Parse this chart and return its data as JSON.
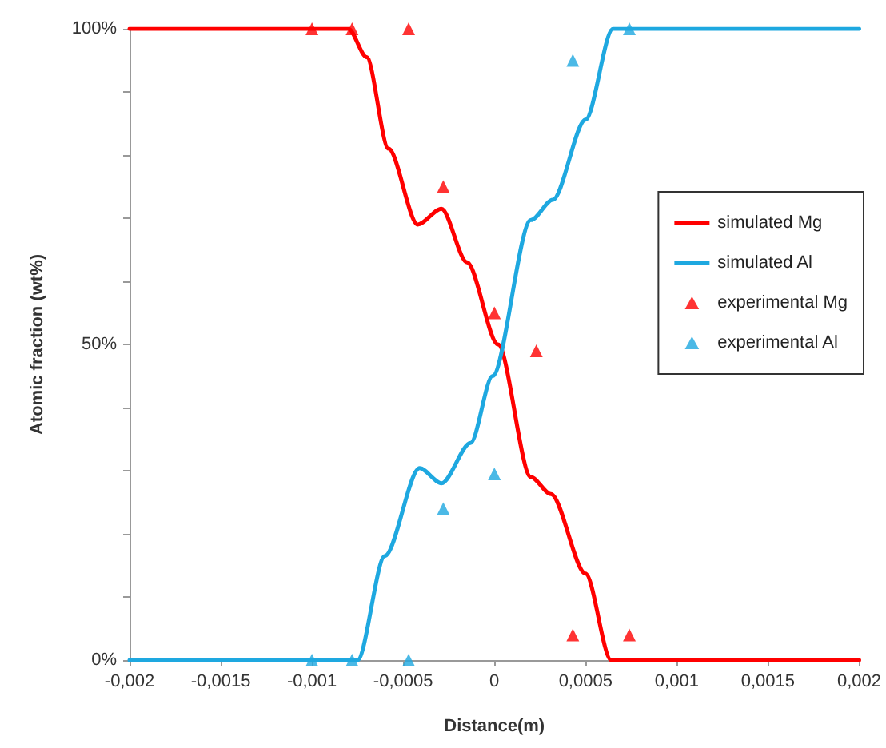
{
  "chart_data": {
    "type": "line",
    "xlabel": "Distance(m)",
    "ylabel": "Atomic fraction (wt%)",
    "xlim": [
      -0.002,
      0.002
    ],
    "xticks": [
      {
        "value": -0.002,
        "label": "-0,002"
      },
      {
        "value": -0.0015,
        "label": "-0,0015"
      },
      {
        "value": -0.001,
        "label": "-0,001"
      },
      {
        "value": -0.0005,
        "label": "-0,0005"
      },
      {
        "value": 0,
        "label": "0"
      },
      {
        "value": 0.0005,
        "label": "0,0005"
      },
      {
        "value": 0.001,
        "label": "0,001"
      },
      {
        "value": 0.0015,
        "label": "0,0015"
      },
      {
        "value": 0.002,
        "label": "0,002"
      }
    ],
    "ylim": [
      0,
      100
    ],
    "yticks": [
      {
        "value": 0,
        "label": "0%"
      },
      {
        "value": 10,
        "label": null
      },
      {
        "value": 20,
        "label": null
      },
      {
        "value": 30,
        "label": null
      },
      {
        "value": 40,
        "label": null
      },
      {
        "value": 50,
        "label": "50%"
      },
      {
        "value": 60,
        "label": null
      },
      {
        "value": 70,
        "label": null
      },
      {
        "value": 80,
        "label": null
      },
      {
        "value": 90,
        "label": null
      },
      {
        "value": 100,
        "label": "100%"
      }
    ],
    "grid": false,
    "legend": "right",
    "series": [
      {
        "name": "simulated Mg",
        "marker": "none",
        "color": "#ff0000",
        "x": [
          -0.002,
          -0.0008,
          -0.0007,
          -0.00058,
          -0.00042,
          -0.00029,
          -0.00015,
          2e-05,
          0.0002,
          0.00031,
          0.0005,
          0.00064,
          0.00081,
          0.002
        ],
        "values": [
          100,
          100,
          95.5,
          81,
          69,
          71.5,
          63,
          50,
          29,
          26.3,
          13.7,
          0,
          0,
          0
        ]
      },
      {
        "name": "simulated Al",
        "marker": "none",
        "color": "#1ea8e0",
        "x": [
          -0.002,
          -0.00075,
          -0.0006,
          -0.00041,
          -0.00029,
          -0.00013,
          -1e-05,
          0.0002,
          0.00032,
          0.0005,
          0.00065,
          0.002
        ],
        "values": [
          0,
          0,
          16.5,
          30.4,
          28,
          34.4,
          45,
          69.7,
          72.9,
          85.6,
          100,
          100
        ]
      },
      {
        "name": "experimental Mg",
        "type": "scatter",
        "marker": "triangle",
        "color": "#ff0000",
        "x": [
          -0.001,
          -0.00078,
          -0.00047,
          -0.00028,
          0,
          0.00023,
          0.00043,
          0.00074
        ],
        "values": [
          100,
          100,
          100,
          75,
          55,
          49,
          4,
          4
        ]
      },
      {
        "name": "experimental Al",
        "type": "scatter",
        "marker": "triangle",
        "color": "#1ea8e0",
        "x": [
          -0.001,
          -0.00078,
          -0.00047,
          -0.00028,
          0,
          0.00043,
          0.00074
        ],
        "values": [
          0,
          0,
          0,
          24,
          29.5,
          95,
          100
        ]
      }
    ]
  }
}
